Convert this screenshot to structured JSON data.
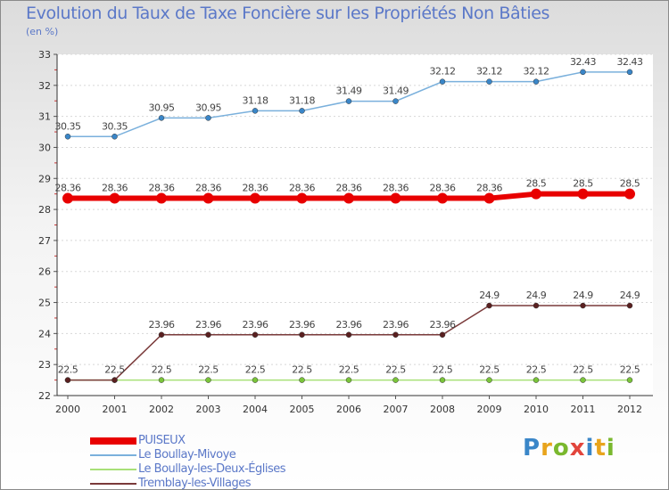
{
  "title": "Evolution du Taux de Taxe Foncière sur les Propriétés Non Bâties",
  "subtitle": "(en %)",
  "logo": {
    "text": "Proxiti",
    "colors": [
      "#3a86c8",
      "#e8a41c",
      "#7ab82e",
      "#e2453c",
      "#3a86c8",
      "#e8a41c",
      "#7ab82e"
    ]
  },
  "chart_data": {
    "type": "line",
    "title": "Evolution du Taux de Taxe Foncière sur les Propriétés Non Bâties",
    "ylabel": "(en %)",
    "xlabel": "",
    "ylim": [
      22,
      33
    ],
    "yticks": [
      22,
      23,
      24,
      25,
      26,
      27,
      28,
      29,
      30,
      31,
      32,
      33
    ],
    "x": [
      "2000",
      "2001",
      "2002",
      "2003",
      "2004",
      "2005",
      "2006",
      "2007",
      "2008",
      "2009",
      "2010",
      "2011",
      "2012"
    ],
    "series": [
      {
        "name": "PUISEUX",
        "color": "#e80000",
        "highlight": true,
        "values": [
          28.36,
          28.36,
          28.36,
          28.36,
          28.36,
          28.36,
          28.36,
          28.36,
          28.36,
          28.36,
          28.5,
          28.5,
          28.5
        ],
        "labels": [
          "28.36",
          "28.36",
          "28.36",
          "28.36",
          "28.36",
          "28.36",
          "28.36",
          "28.36",
          "28.36",
          "28.36",
          "28.5",
          "28.5",
          "28.5"
        ]
      },
      {
        "name": "Le Boullay-Mivoye",
        "color": "#7ab0dc",
        "marker": "#3a86c8",
        "values": [
          30.35,
          30.35,
          30.95,
          30.95,
          31.18,
          31.18,
          31.49,
          31.49,
          32.12,
          32.12,
          32.12,
          32.43,
          32.43
        ],
        "labels": [
          "30.35",
          "30.35",
          "30.95",
          "30.95",
          "31.18",
          "31.18",
          "31.49",
          "31.49",
          "32.12",
          "32.12",
          "32.12",
          "32.43",
          "32.43"
        ]
      },
      {
        "name": "Le Boullay-les-Deux-Églises",
        "color": "#a8e078",
        "marker": "#7ac43a",
        "values": [
          22.5,
          22.5,
          22.5,
          22.5,
          22.5,
          22.5,
          22.5,
          22.5,
          22.5,
          22.5,
          22.5,
          22.5,
          22.5
        ],
        "labels": [
          "22.5",
          "22.5",
          "22.5",
          "22.5",
          "22.5",
          "22.5",
          "22.5",
          "22.5",
          "22.5",
          "22.5",
          "22.5",
          "22.5",
          "22.5"
        ]
      },
      {
        "name": "Tremblay-les-Villages",
        "color": "#7a3a3a",
        "marker": "#5a2020",
        "values": [
          22.5,
          22.5,
          23.96,
          23.96,
          23.96,
          23.96,
          23.96,
          23.96,
          23.96,
          24.9,
          24.9,
          24.9,
          24.9
        ],
        "labels": [
          "22.5",
          "22.5",
          "23.96",
          "23.96",
          "23.96",
          "23.96",
          "23.96",
          "23.96",
          "23.96",
          "24.9",
          "24.9",
          "24.9",
          "24.9"
        ]
      }
    ],
    "legend": "bottom-left"
  }
}
